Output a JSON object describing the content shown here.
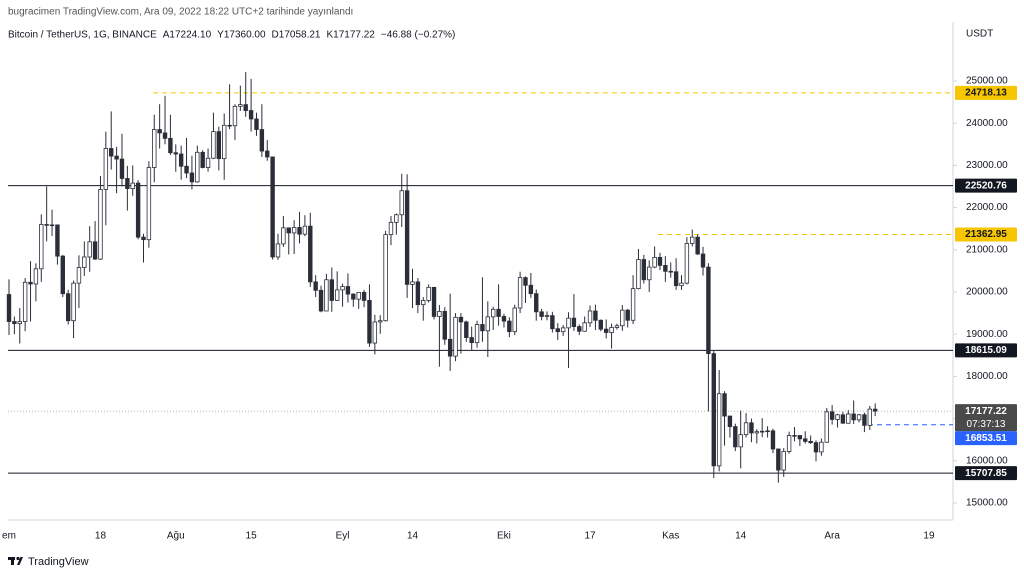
{
  "header": {
    "publisher": "bugracimen TradingView.com, Ara 09, 2022 18:22 UTC+2 tarihinde yayınlandı"
  },
  "legend": {
    "symbol": "Bitcoin / TetherUS, 1G, BINANCE",
    "open": "A17224.10",
    "high": "Y17360.00",
    "low": "D17058.21",
    "close": "K17177.22",
    "change": "−46.88 (−0.27%)"
  },
  "footer": {
    "brand": "TradingView"
  },
  "chart_data": {
    "type": "candlestick",
    "y_unit": "USDT",
    "ylim": [
      14597,
      26398
    ],
    "yticks": [
      {
        "value": 15000,
        "label": "15000.00"
      },
      {
        "value": 16000,
        "label": "16000.00"
      },
      {
        "value": 17000,
        "label": "17000.00"
      },
      {
        "value": 18000,
        "label": "18000.00"
      },
      {
        "value": 19000,
        "label": "19000.00"
      },
      {
        "value": 20000,
        "label": "20000.00"
      },
      {
        "value": 21000,
        "label": "21000.00"
      },
      {
        "value": 22000,
        "label": "22000.00"
      },
      {
        "value": 23000,
        "label": "23000.00"
      },
      {
        "value": 24000,
        "label": "24000.00"
      },
      {
        "value": 25000,
        "label": "25000.00"
      }
    ],
    "up_color": "#ffffff",
    "down_color": "#2a2e39",
    "outline_color": "#2a2e39",
    "categories": [
      "em",
      null,
      null,
      null,
      null,
      null,
      null,
      null,
      null,
      null,
      null,
      null,
      null,
      null,
      null,
      null,
      null,
      "18",
      null,
      null,
      null,
      null,
      null,
      null,
      null,
      null,
      null,
      null,
      null,
      null,
      null,
      "Ağu",
      null,
      null,
      null,
      null,
      null,
      null,
      null,
      null,
      null,
      null,
      null,
      null,
      null,
      "15",
      null,
      null,
      null,
      null,
      null,
      null,
      null,
      null,
      null,
      null,
      null,
      null,
      null,
      null,
      null,
      null,
      "Eyl",
      null,
      null,
      null,
      null,
      null,
      null,
      null,
      null,
      null,
      null,
      null,
      null,
      "14",
      null,
      null,
      null,
      null,
      null,
      null,
      null,
      null,
      null,
      null,
      null,
      null,
      null,
      null,
      null,
      null,
      "Eki",
      null,
      null,
      null,
      null,
      null,
      null,
      null,
      null,
      null,
      null,
      null,
      null,
      null,
      null,
      null,
      "17",
      null,
      null,
      null,
      null,
      null,
      null,
      null,
      null,
      null,
      null,
      null,
      null,
      null,
      null,
      "Kas",
      null,
      null,
      null,
      null,
      null,
      null,
      null,
      null,
      null,
      null,
      null,
      null,
      "14",
      null,
      null,
      null,
      null,
      null,
      null,
      null,
      null,
      null,
      null,
      null,
      null,
      null,
      null,
      null,
      null,
      "Ara",
      null,
      null,
      null,
      null,
      null,
      null,
      null,
      null,
      null,
      null,
      null,
      null,
      null,
      null,
      null,
      null,
      null,
      "19",
      null,
      null,
      null
    ],
    "open": [
      19940,
      19300,
      19250,
      19300,
      20230,
      20190,
      20550,
      21600,
      21580,
      21590,
      20850,
      19960,
      19320,
      20210,
      20580,
      20830,
      21190,
      20780,
      22430,
      23400,
      23220,
      23150,
      22690,
      22450,
      22580,
      21300,
      21240,
      22950,
      23850,
      23770,
      23640,
      23300,
      23270,
      22980,
      22820,
      22610,
      23310,
      22950,
      23170,
      23800,
      23160,
      23950,
      23940,
      24400,
      24440,
      24300,
      24100,
      23850,
      23340,
      23200,
      20830,
      21140,
      21520,
      21400,
      21530,
      21370,
      21560,
      20240,
      20040,
      19550,
      20290,
      19800,
      20050,
      20130,
      19950,
      19830,
      19990,
      19800,
      18790,
      19290,
      19320,
      21360,
      21650,
      21830,
      22400,
      20180,
      20240,
      19700,
      19800,
      20110,
      19420,
      19540,
      18880,
      18480,
      19400,
      19290,
      18920,
      18800,
      19230,
      19080,
      19410,
      19590,
      19420,
      19310,
      19060,
      19620,
      20340,
      20160,
      19960,
      19530,
      19420,
      19440,
      19130,
      19060,
      19150,
      19380,
      19180,
      19070,
      19270,
      19550,
      19330,
      19120,
      19040,
      19160,
      19200,
      19570,
      19330,
      20080,
      20770,
      20290,
      20590,
      20820,
      20630,
      20490,
      20480,
      20150,
      20210,
      21150,
      21300,
      20900,
      20590,
      18540,
      15880,
      17590,
      17060,
      16810,
      16330,
      16620,
      16900,
      16660,
      16690,
      16700,
      16710,
      16280,
      15780,
      16220,
      16600,
      16600,
      16520,
      16460,
      16430,
      16210,
      16440,
      17160,
      16980,
      17090,
      16890,
      17110,
      16970,
      17090,
      16840,
      17224.1,
      null,
      null,
      null,
      null,
      null,
      null,
      null,
      null,
      null,
      null,
      null,
      null,
      null
    ],
    "high": [
      20300,
      19420,
      19620,
      20330,
      20730,
      20680,
      21840,
      22500,
      21950,
      21600,
      20880,
      20050,
      20270,
      20870,
      21200,
      21560,
      21680,
      22750,
      23800,
      24280,
      23440,
      23750,
      22990,
      23000,
      22650,
      21380,
      23100,
      24200,
      24450,
      24650,
      24200,
      23500,
      23470,
      23650,
      23230,
      23470,
      23360,
      23400,
      24250,
      23920,
      24230,
      24920,
      24450,
      24890,
      25210,
      25050,
      24250,
      24450,
      23600,
      23210,
      21380,
      21800,
      21520,
      21700,
      21900,
      21820,
      21880,
      20400,
      20150,
      20430,
      20580,
      20490,
      20200,
      20440,
      19970,
      20000,
      20050,
      20180,
      19460,
      19450,
      21450,
      21800,
      21860,
      22800,
      22790,
      20550,
      20330,
      19880,
      20180,
      20110,
      19690,
      19640,
      19960,
      19500,
      19500,
      19320,
      19180,
      19320,
      20350,
      19780,
      19650,
      20180,
      19480,
      19400,
      19700,
      20480,
      20370,
      20450,
      20060,
      19600,
      19540,
      19530,
      19260,
      19220,
      19520,
      19950,
      19230,
      19420,
      19680,
      19700,
      19350,
      19350,
      19250,
      19250,
      19690,
      19600,
      20400,
      21020,
      20880,
      20750,
      21080,
      20930,
      20850,
      20700,
      20800,
      20400,
      21300,
      21480,
      21370,
      21070,
      20680,
      18600,
      18150,
      17650,
      17070,
      16880,
      17190,
      17130,
      17000,
      16750,
      17010,
      16820,
      16760,
      16290,
      16300,
      16690,
      16800,
      16600,
      16700,
      16600,
      16480,
      16530,
      17250,
      17320,
      17110,
      17160,
      17200,
      17430,
      17110,
      17140,
      17300,
      17360,
      null,
      null,
      null,
      null,
      null,
      null,
      null,
      null,
      null,
      null,
      null,
      null,
      null
    ],
    "low": [
      18980,
      19000,
      18780,
      19070,
      19300,
      19780,
      20240,
      21200,
      21330,
      20650,
      19880,
      19230,
      18910,
      19620,
      20380,
      20480,
      20760,
      20760,
      21580,
      22900,
      22340,
      22500,
      21930,
      22280,
      21250,
      20700,
      21050,
      22600,
      23400,
      23500,
      23250,
      22850,
      22660,
      22700,
      22430,
      22590,
      22930,
      22850,
      23150,
      22880,
      22660,
      23860,
      23600,
      24290,
      24150,
      23800,
      23700,
      23200,
      23110,
      20770,
      20760,
      21070,
      20890,
      20900,
      21150,
      21320,
      20120,
      19880,
      19520,
      19550,
      19530,
      19800,
      19650,
      19750,
      19650,
      19600,
      19640,
      18700,
      18520,
      19010,
      19300,
      21110,
      21360,
      21540,
      19860,
      19620,
      19500,
      19320,
      19750,
      19350,
      18230,
      18750,
      18130,
      18360,
      18540,
      18820,
      18630,
      18680,
      18820,
      18460,
      19100,
      19200,
      19160,
      18930,
      18980,
      19500,
      19740,
      19860,
      19320,
      19330,
      19330,
      19040,
      18860,
      18960,
      18200,
      19080,
      18980,
      19060,
      19170,
      19100,
      19070,
      18900,
      18660,
      19110,
      19080,
      19160,
      19240,
      20060,
      20200,
      20000,
      20560,
      20520,
      20240,
      20340,
      20050,
      20050,
      20180,
      21080,
      20880,
      20390,
      17170,
      15590,
      15750,
      16360,
      16550,
      16230,
      15820,
      16550,
      16440,
      16410,
      16560,
      16550,
      16180,
      15480,
      15620,
      16170,
      16460,
      16350,
      16410,
      16400,
      15990,
      16120,
      16430,
      16860,
      16790,
      16880,
      16880,
      16870,
      16910,
      16680,
      16730,
      17058.21,
      null,
      null,
      null,
      null,
      null,
      null,
      null,
      null,
      null,
      null,
      null,
      null,
      null
    ],
    "close": [
      19300,
      19250,
      19300,
      20230,
      20190,
      20550,
      21600,
      21580,
      21590,
      20850,
      19960,
      19320,
      20210,
      20580,
      20830,
      21190,
      20780,
      22430,
      23400,
      23220,
      23150,
      22690,
      22450,
      22580,
      21300,
      21240,
      22950,
      23850,
      23770,
      23640,
      23300,
      23270,
      22980,
      22820,
      22610,
      23310,
      22950,
      23170,
      23800,
      23160,
      23950,
      23940,
      24400,
      24440,
      24300,
      24100,
      23850,
      23340,
      23200,
      20830,
      21140,
      21520,
      21400,
      21530,
      21370,
      21560,
      20240,
      20040,
      19550,
      20290,
      19800,
      20050,
      20130,
      19950,
      19830,
      19990,
      19800,
      18790,
      19290,
      19320,
      21360,
      21650,
      21830,
      22400,
      20180,
      20240,
      19700,
      19800,
      20110,
      19420,
      19540,
      18880,
      18480,
      19400,
      19290,
      18920,
      18800,
      19230,
      19080,
      19410,
      19590,
      19420,
      19310,
      19060,
      19620,
      20340,
      20160,
      19960,
      19530,
      19420,
      19440,
      19130,
      19060,
      19150,
      19380,
      19180,
      19070,
      19270,
      19550,
      19330,
      19120,
      19040,
      19160,
      19200,
      19570,
      19330,
      20080,
      20770,
      20290,
      20590,
      20820,
      20630,
      20490,
      20480,
      20150,
      20210,
      21150,
      21300,
      20900,
      20590,
      18540,
      15880,
      17590,
      17060,
      16810,
      16330,
      16620,
      16900,
      16660,
      16690,
      16700,
      16710,
      16280,
      15780,
      16220,
      16600,
      16600,
      16520,
      16460,
      16430,
      16210,
      16440,
      17160,
      16980,
      17090,
      16890,
      17110,
      16970,
      17090,
      16840,
      17224.1,
      17177.22,
      null,
      null,
      null,
      null,
      null,
      null,
      null,
      null,
      null,
      null,
      null,
      null,
      null
    ],
    "levels": [
      {
        "value": 24718.13,
        "color": "#f7c600",
        "style": "dashed"
      },
      {
        "value": 22520.76,
        "color": "#131722",
        "style": "solid"
      },
      {
        "value": 21362.95,
        "color": "#f7c600",
        "style": "dashed"
      },
      {
        "value": 18615.09,
        "color": "#131722",
        "style": "solid"
      },
      {
        "value": 15707.85,
        "color": "#131722",
        "style": "solid"
      },
      {
        "value": 16853.51,
        "color": "#2962ff",
        "style": "dashed"
      }
    ],
    "last_price": {
      "value": 17177.22,
      "countdown": "07:37:13",
      "color": "#4a4a4a"
    }
  }
}
